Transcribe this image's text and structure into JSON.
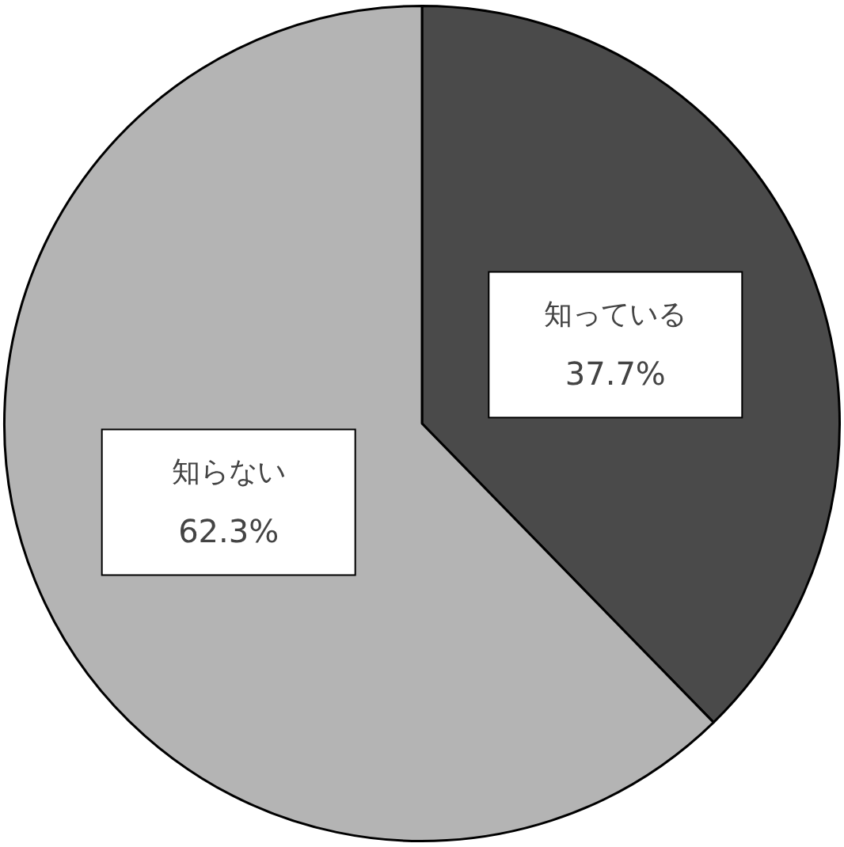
{
  "chart_data": {
    "type": "pie",
    "categories": [
      "知っている",
      "知らない"
    ],
    "values": [
      37.7,
      62.3
    ],
    "value_labels": [
      "37.7%",
      "62.3%"
    ],
    "colors": [
      "#4a4a4a",
      "#b4b4b4"
    ],
    "legend": false
  }
}
